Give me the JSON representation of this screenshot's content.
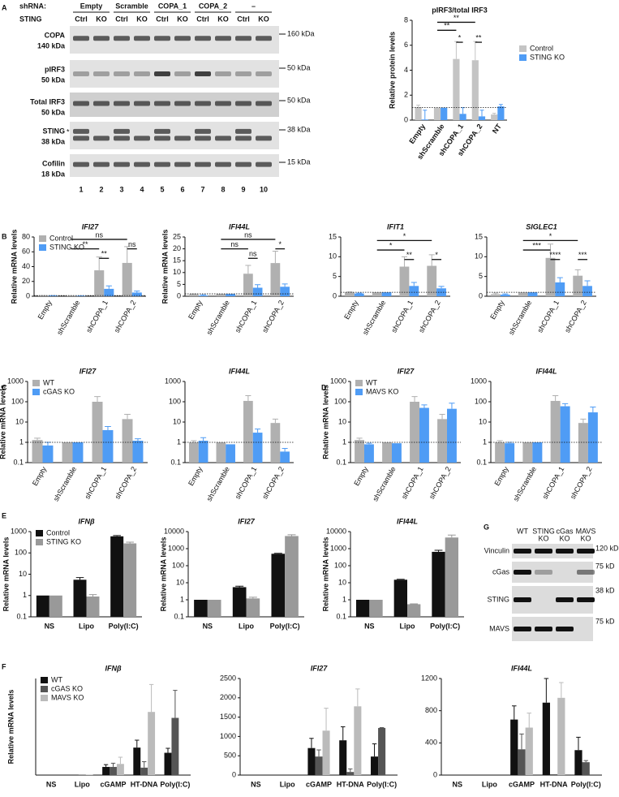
{
  "panel_labels": [
    "A",
    "B",
    "C",
    "D",
    "E",
    "F",
    "G"
  ],
  "blot_a": {
    "shrna_label": "shRNA:",
    "sting_label": "STING",
    "groups": [
      "Empty",
      "Scramble",
      "COPA_1",
      "COPA_2",
      "–"
    ],
    "lanes": [
      "Ctrl",
      "KO",
      "Ctrl",
      "KO",
      "Ctrl",
      "KO",
      "Ctrl",
      "KO",
      "Ctrl",
      "KO"
    ],
    "rows": [
      {
        "name": "COPA",
        "size": "140 kDa",
        "marker": "160 kDa"
      },
      {
        "name": "pIRF3",
        "size": "50 kDa",
        "marker": "50 kDa"
      },
      {
        "name": "Total IRF3",
        "size": "50 kDa",
        "marker": "50 kDa"
      },
      {
        "name": "STING",
        "size": "38 kDa",
        "marker": "38 kDa"
      },
      {
        "name": "Cofilin",
        "size": "18 kDa",
        "marker": "15 kDa"
      }
    ],
    "asterisk": "*",
    "lane_numbers": [
      "1",
      "2",
      "3",
      "4",
      "5",
      "6",
      "7",
      "8",
      "9",
      "10"
    ]
  },
  "blot_g": {
    "columns": [
      [
        "WT"
      ],
      [
        "STING",
        "KO"
      ],
      [
        "cGas",
        "KO"
      ],
      [
        "MAVS",
        "KO"
      ]
    ],
    "rows": [
      {
        "name": "Vinculin",
        "marker": "120 kD"
      },
      {
        "name": "cGas",
        "marker": "75 kD"
      },
      {
        "name": "STING",
        "marker": "38 kD"
      },
      {
        "name": "MAVS",
        "marker": "75 kD"
      }
    ]
  },
  "chart_data": [
    {
      "type": "bar",
      "title": "pIRF3/total IRF3",
      "ylabel": "Relative protein levels",
      "categories": [
        "Empty",
        "shScramble",
        "shCOPA_1",
        "shCOPA_2",
        "NT"
      ],
      "series": [
        {
          "name": "Control",
          "color": "#c4c4c4",
          "values": [
            1.05,
            1.0,
            4.9,
            4.8,
            0.45
          ],
          "errors": [
            0.15,
            0,
            1.4,
            1.5,
            0.1
          ]
        },
        {
          "name": "STING KO",
          "color": "#4f9cf5",
          "values": [
            0.05,
            1.0,
            0.5,
            0.3,
            1.1
          ],
          "errors": [
            0.75,
            0,
            0.5,
            0.5,
            0.15
          ]
        }
      ],
      "ylim": [
        0,
        8
      ],
      "yticks": [
        0,
        2,
        4,
        6,
        8
      ],
      "hline": 1,
      "legend": "right",
      "annotations": [
        "**",
        "**",
        "*",
        "**"
      ]
    },
    {
      "type": "bar",
      "title": "IFI27",
      "ylabel": "Relative mRNA levels",
      "categories": [
        "Empty",
        "shScramble",
        "shCOPA_1",
        "shCOPA_2"
      ],
      "series": [
        {
          "name": "Control",
          "color": "#b0b0b0",
          "values": [
            0.5,
            0.5,
            35,
            45
          ],
          "errors": [
            0.3,
            0.1,
            18,
            22
          ]
        },
        {
          "name": "STING KO",
          "color": "#4f9cf5",
          "values": [
            0.5,
            0.5,
            10,
            5
          ],
          "errors": [
            0.3,
            0.1,
            4,
            2
          ]
        }
      ],
      "ylim": [
        0,
        80
      ],
      "yticks": [
        0,
        20,
        40,
        60,
        80
      ],
      "hline": 1,
      "legend": "upper left",
      "annotations": [
        "ns",
        "**",
        "**",
        "ns"
      ]
    },
    {
      "type": "bar",
      "title": "IFI44L",
      "ylabel": "Relative mRNA levels",
      "categories": [
        "Empty",
        "shScramble",
        "shCOPA_1",
        "shCOPA_2"
      ],
      "series": [
        {
          "name": "Control",
          "color": "#b0b0b0",
          "values": [
            0.8,
            1,
            9.5,
            14
          ],
          "errors": [
            0.2,
            0,
            3.5,
            5
          ]
        },
        {
          "name": "STING KO",
          "color": "#4f9cf5",
          "values": [
            0.3,
            1,
            3.6,
            4
          ],
          "errors": [
            0.3,
            0,
            1.3,
            1.2
          ]
        }
      ],
      "ylim": [
        0,
        25
      ],
      "yticks": [
        0,
        5,
        10,
        15,
        20,
        25
      ],
      "hline": 1,
      "annotations": [
        "ns",
        "ns",
        "ns",
        "*"
      ]
    },
    {
      "type": "bar",
      "title": "IFIT1",
      "categories": [
        "Empty",
        "shScramble",
        "shCOPA_1",
        "shCOPA_2"
      ],
      "series": [
        {
          "name": "Control",
          "color": "#b0b0b0",
          "values": [
            1,
            1,
            7.5,
            7.7
          ],
          "errors": [
            0.1,
            0,
            2.5,
            2.8
          ]
        },
        {
          "name": "STING KO",
          "color": "#4f9cf5",
          "values": [
            0.7,
            1,
            2.6,
            2
          ],
          "errors": [
            0.1,
            0,
            0.9,
            0.5
          ]
        }
      ],
      "ylim": [
        0,
        15
      ],
      "yticks": [
        0,
        5,
        10,
        15
      ],
      "hline": 1,
      "annotations": [
        "*",
        "*",
        "**",
        "*"
      ]
    },
    {
      "type": "bar",
      "title": "SIGLEC1",
      "categories": [
        "Empty",
        "shScramble",
        "shCOPA_1",
        "shCOPA_2"
      ],
      "series": [
        {
          "name": "Control",
          "color": "#b0b0b0",
          "values": [
            0.5,
            1,
            9.7,
            5.2
          ],
          "errors": [
            0.3,
            0,
            3.5,
            1.5
          ]
        },
        {
          "name": "STING KO",
          "color": "#4f9cf5",
          "values": [
            0.4,
            1,
            3.5,
            2.6
          ],
          "errors": [
            0.2,
            0,
            1.2,
            1.3
          ]
        }
      ],
      "ylim": [
        0,
        15
      ],
      "yticks": [
        0,
        5,
        10,
        15
      ],
      "hline": 1,
      "annotations": [
        "*",
        "***",
        "****",
        "***"
      ]
    },
    {
      "type": "bar",
      "title": "IFI27",
      "ylabel": "Relative mRNA levels",
      "log": true,
      "categories": [
        "Empty",
        "shScramble",
        "shCOPA_1",
        "shCOPA_2"
      ],
      "series": [
        {
          "name": "WT",
          "color": "#b0b0b0",
          "values": [
            1.3,
            1,
            100,
            14
          ],
          "errors": [
            0.3,
            0,
            80,
            10
          ]
        },
        {
          "name": "cGAS KO",
          "color": "#4f9cf5",
          "values": [
            0.7,
            1,
            4,
            1.2
          ],
          "errors": [
            0.3,
            0,
            2,
            0.3
          ]
        }
      ],
      "ylim": [
        0.1,
        1000
      ],
      "yticks": [
        0.1,
        1,
        10,
        100,
        1000
      ],
      "hline": 1,
      "legend": "upper left"
    },
    {
      "type": "bar",
      "title": "IFI44L",
      "log": true,
      "categories": [
        "Empty",
        "shScramble",
        "shCOPA_1",
        "shCOPA_2"
      ],
      "series": [
        {
          "name": "WT",
          "color": "#b0b0b0",
          "values": [
            1,
            1,
            110,
            9
          ],
          "errors": [
            0.2,
            0,
            90,
            5
          ]
        },
        {
          "name": "cGAS KO",
          "color": "#4f9cf5",
          "values": [
            1.2,
            0.8,
            3,
            0.35
          ],
          "errors": [
            0.5,
            0,
            1.5,
            0.15
          ]
        }
      ],
      "ylim": [
        0.1,
        1000
      ],
      "yticks": [
        0.1,
        1,
        10,
        100,
        1000
      ],
      "hline": 1
    },
    {
      "type": "bar",
      "title": "IFI27",
      "ylabel": "Relative mRNA levels",
      "log": true,
      "categories": [
        "Empty",
        "shScramble",
        "shCOPA_1",
        "shCOPA_2"
      ],
      "series": [
        {
          "name": "WT",
          "color": "#b0b0b0",
          "values": [
            1.3,
            1,
            100,
            14
          ],
          "errors": [
            0.3,
            0,
            80,
            10
          ]
        },
        {
          "name": "MAVS KO",
          "color": "#4f9cf5",
          "values": [
            0.8,
            0.9,
            50,
            45
          ],
          "errors": [
            0.1,
            0,
            20,
            40
          ]
        }
      ],
      "ylim": [
        0.1,
        1000
      ],
      "yticks": [
        0.1,
        1,
        10,
        100,
        1000
      ],
      "hline": 1,
      "legend": "upper left"
    },
    {
      "type": "bar",
      "title": "IFI44L",
      "log": true,
      "categories": [
        "Empty",
        "shScramble",
        "shCOPA_1",
        "shCOPA_2"
      ],
      "series": [
        {
          "name": "WT",
          "color": "#b0b0b0",
          "values": [
            1,
            1,
            110,
            9
          ],
          "errors": [
            0.2,
            0,
            90,
            5
          ]
        },
        {
          "name": "MAVS KO",
          "color": "#4f9cf5",
          "values": [
            0.9,
            1,
            60,
            30
          ],
          "errors": [
            0.1,
            0,
            20,
            25
          ]
        }
      ],
      "ylim": [
        0.1,
        1000
      ],
      "yticks": [
        0.1,
        1,
        10,
        100,
        1000
      ],
      "hline": 1
    },
    {
      "type": "bar",
      "title": "IFNβ",
      "ylabel": "Relative mRNA levels",
      "log": true,
      "categories": [
        "NS",
        "Lipo",
        "Poly(I:C)"
      ],
      "series": [
        {
          "name": "Control",
          "color": "#111111",
          "values": [
            1,
            5.5,
            600
          ],
          "errors": [
            0,
            1.5,
            50
          ]
        },
        {
          "name": "STING KO",
          "color": "#999999",
          "values": [
            1,
            0.9,
            280
          ],
          "errors": [
            0,
            0.2,
            40
          ]
        }
      ],
      "ylim": [
        0.1,
        1000
      ],
      "yticks": [
        0.1,
        1,
        10,
        100,
        1000
      ],
      "legend": "upper left"
    },
    {
      "type": "bar",
      "title": "IFI27",
      "ylabel": "Relative mRNA levels",
      "log": true,
      "categories": [
        "NS",
        "Lipo",
        "Poly(I:C)"
      ],
      "series": [
        {
          "name": "Control",
          "color": "#111111",
          "values": [
            1,
            5.5,
            500
          ],
          "errors": [
            0,
            0.8,
            30
          ]
        },
        {
          "name": "STING KO",
          "color": "#999999",
          "values": [
            1,
            1.2,
            5500
          ],
          "errors": [
            0,
            0.2,
            1000
          ]
        }
      ],
      "ylim": [
        0.1,
        10000
      ],
      "yticks": [
        0.1,
        1,
        10,
        100,
        1000,
        10000
      ]
    },
    {
      "type": "bar",
      "title": "IFI44L",
      "ylabel": "Relative mRNA levels",
      "log": true,
      "categories": [
        "NS",
        "Lipo",
        "Poly(I:C)"
      ],
      "series": [
        {
          "name": "Control",
          "color": "#111111",
          "values": [
            1,
            15,
            650
          ],
          "errors": [
            0,
            1,
            150
          ]
        },
        {
          "name": "STING KO",
          "color": "#999999",
          "values": [
            1,
            0.55,
            4500
          ],
          "errors": [
            0,
            0.03,
            1800
          ]
        }
      ],
      "ylim": [
        0.1,
        10000
      ],
      "yticks": [
        0.1,
        1,
        10,
        100,
        1000,
        10000
      ]
    },
    {
      "type": "bar",
      "title": "IFNβ",
      "ylabel": "Relative mRNA levels",
      "categories": [
        "NS",
        "Lipo",
        "cGAMP",
        "HT-DNA",
        "Poly(I:C)"
      ],
      "series": [
        {
          "name": "WT",
          "color": "#111111",
          "values": [
            0,
            0.5,
            11,
            37,
            30
          ],
          "errors": [
            0,
            0,
            3,
            10,
            6
          ]
        },
        {
          "name": "cGAS KO",
          "color": "#555555",
          "values": [
            0,
            0.5,
            11,
            10,
            77
          ],
          "errors": [
            0,
            0,
            5,
            8,
            37
          ]
        },
        {
          "name": "MAVS KO",
          "color": "#bbbbbb",
          "values": [
            0,
            0.5,
            15,
            85,
            null
          ],
          "errors": [
            0,
            0,
            9,
            37,
            null
          ]
        }
      ],
      "ylim": [
        0,
        130
      ],
      "legend": "upper left"
    },
    {
      "type": "bar",
      "title": "IFI27",
      "categories": [
        "NS",
        "Lipo",
        "cGAMP",
        "HT-DNA",
        "Poly(I:C)"
      ],
      "series": [
        {
          "name": "WT",
          "color": "#111111",
          "values": [
            0,
            0,
            700,
            900,
            480
          ],
          "errors": [
            0,
            0,
            250,
            350,
            330
          ]
        },
        {
          "name": "cGAS KO",
          "color": "#555555",
          "values": [
            0,
            0,
            480,
            80,
            1220
          ],
          "errors": [
            0,
            0,
            170,
            80,
            10
          ]
        },
        {
          "name": "MAVS KO",
          "color": "#bbbbbb",
          "values": [
            0,
            0,
            1150,
            1780,
            null
          ],
          "errors": [
            0,
            0,
            580,
            450,
            null
          ]
        }
      ],
      "ylim": [
        0,
        2500
      ],
      "yticks": [
        0,
        500,
        1000,
        1500,
        2000,
        2500
      ]
    },
    {
      "type": "bar",
      "title": "IFI44L",
      "categories": [
        "NS",
        "Lipo",
        "cGAMP",
        "HT-DNA",
        "Poly(I:C)"
      ],
      "series": [
        {
          "name": "WT",
          "color": "#111111",
          "values": [
            0,
            0,
            690,
            900,
            310
          ],
          "errors": [
            0,
            0,
            170,
            300,
            160
          ]
        },
        {
          "name": "cGAS KO",
          "color": "#555555",
          "values": [
            0,
            0,
            320,
            10,
            160
          ],
          "errors": [
            0,
            0,
            190,
            0,
            20
          ]
        },
        {
          "name": "MAVS KO",
          "color": "#bbbbbb",
          "values": [
            0,
            0,
            590,
            960,
            null
          ],
          "errors": [
            0,
            0,
            180,
            190,
            null
          ]
        }
      ],
      "ylim": [
        0,
        1200
      ],
      "yticks": [
        0,
        400,
        800,
        1200
      ]
    }
  ]
}
